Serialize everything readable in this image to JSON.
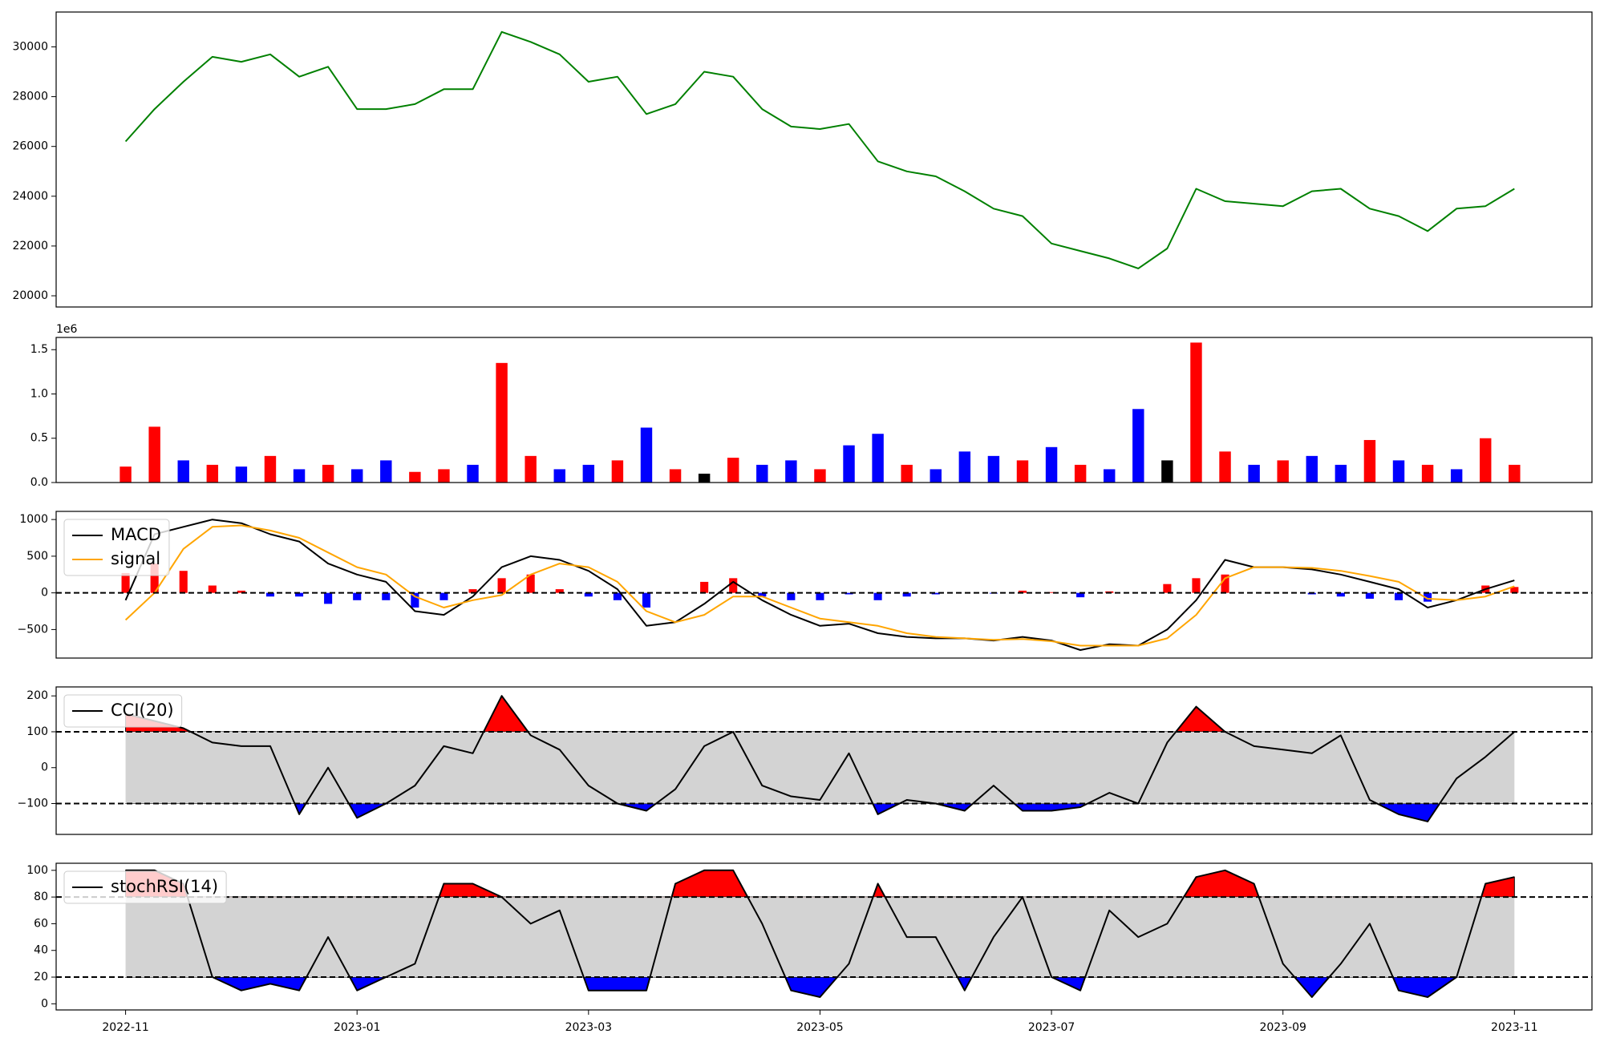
{
  "chart_data": [
    {
      "type": "line",
      "x": [
        0,
        0.25,
        0.5,
        0.75,
        1,
        1.25,
        1.5,
        1.75,
        2,
        2.25,
        2.5,
        2.75,
        3,
        3.25,
        3.5,
        3.75,
        4,
        4.25,
        4.5,
        4.75,
        5,
        5.25,
        5.5,
        5.75,
        6,
        6.25,
        6.5,
        6.75,
        7,
        7.25,
        7.5,
        7.75,
        8,
        8.25,
        8.5,
        8.75,
        9,
        9.25,
        9.5,
        9.75,
        10,
        10.25,
        10.5,
        10.75,
        11,
        11.25,
        11.5,
        11.75,
        12
      ],
      "xlim": [
        -0.6,
        12.67
      ],
      "ylim": [
        19550,
        31400
      ],
      "yticks": [
        20000,
        22000,
        24000,
        26000,
        28000,
        30000
      ],
      "series": [
        {
          "color": "green",
          "values": [
            26200,
            27500,
            28600,
            29600,
            29400,
            29700,
            28800,
            29200,
            27500,
            27500,
            27700,
            28300,
            28300,
            30600,
            30200,
            29700,
            28600,
            28800,
            27300,
            27700,
            29000,
            28800,
            27500,
            26800,
            26700,
            26900,
            25400,
            25000,
            24800,
            24200,
            23500,
            23200,
            22100,
            21800,
            21500,
            21100,
            21900,
            24300,
            23800,
            23700,
            23600,
            24200,
            24300,
            23500,
            23200,
            22600,
            23500,
            23600,
            24300
          ]
        }
      ]
    },
    {
      "type": "bar",
      "x": [
        0,
        0.25,
        0.5,
        0.75,
        1,
        1.25,
        1.5,
        1.75,
        2,
        2.25,
        2.5,
        2.75,
        3,
        3.25,
        3.5,
        3.75,
        4,
        4.25,
        4.5,
        4.75,
        5,
        5.25,
        5.5,
        5.75,
        6,
        6.25,
        6.5,
        6.75,
        7,
        7.25,
        7.5,
        7.75,
        8,
        8.25,
        8.5,
        8.75,
        9,
        9.25,
        9.5,
        9.75,
        10,
        10.25,
        10.5,
        10.75,
        11,
        11.25,
        11.5,
        11.75,
        12
      ],
      "xlim": [
        -0.6,
        12.67
      ],
      "ylim": [
        0,
        1.638
      ],
      "yticks": [
        {
          "value": 0,
          "label": "0.0"
        },
        0.5,
        {
          "value": 1,
          "label": "1.0"
        },
        1.5
      ],
      "y_offset_label": "1e6",
      "values": [
        0.18,
        0.63,
        0.25,
        0.2,
        0.18,
        0.3,
        0.15,
        0.2,
        0.15,
        0.25,
        0.12,
        0.15,
        0.2,
        1.35,
        0.3,
        0.15,
        0.2,
        0.25,
        0.62,
        0.15,
        0.1,
        0.28,
        0.2,
        0.25,
        0.15,
        0.42,
        0.55,
        0.2,
        0.15,
        0.35,
        0.3,
        0.25,
        0.4,
        0.2,
        0.15,
        0.83,
        0.25,
        1.58,
        0.35,
        0.2,
        0.25,
        0.3,
        0.2,
        0.48,
        0.25,
        0.2,
        0.15,
        0.5,
        0.2
      ],
      "colors": [
        "red",
        "red",
        "blue",
        "red",
        "blue",
        "red",
        "blue",
        "red",
        "blue",
        "blue",
        "red",
        "red",
        "blue",
        "red",
        "red",
        "blue",
        "blue",
        "red",
        "blue",
        "red",
        "black",
        "red",
        "blue",
        "blue",
        "red",
        "blue",
        "blue",
        "red",
        "blue",
        "blue",
        "blue",
        "red",
        "blue",
        "red",
        "blue",
        "blue",
        "black",
        "red",
        "red",
        "blue",
        "red",
        "blue",
        "blue",
        "red",
        "blue",
        "red",
        "blue",
        "red",
        "red"
      ]
    },
    {
      "type": "combo",
      "x": [
        0,
        0.25,
        0.5,
        0.75,
        1,
        1.25,
        1.5,
        1.75,
        2,
        2.25,
        2.5,
        2.75,
        3,
        3.25,
        3.5,
        3.75,
        4,
        4.25,
        4.5,
        4.75,
        5,
        5.25,
        5.5,
        5.75,
        6,
        6.25,
        6.5,
        6.75,
        7,
        7.25,
        7.5,
        7.75,
        8,
        8.25,
        8.5,
        8.75,
        9,
        9.25,
        9.5,
        9.75,
        10,
        10.25,
        10.5,
        10.75,
        11,
        11.25,
        11.5,
        11.75,
        12
      ],
      "xlim": [
        -0.6,
        12.67
      ],
      "ylim": [
        -889,
        1111
      ],
      "yticks": [
        {
          "value": -500,
          "label": "−500"
        },
        0,
        500,
        1000
      ],
      "hlines": [
        0
      ],
      "legend": "upper left",
      "series": [
        {
          "type": "bar",
          "pos_color": "red",
          "neg_color": "blue",
          "values": [
            270,
            400,
            300,
            100,
            30,
            -50,
            -50,
            -150,
            -100,
            -100,
            -200,
            -100,
            50,
            200,
            250,
            50,
            -50,
            -100,
            -200,
            0,
            150,
            200,
            -50,
            -100,
            -100,
            -20,
            -100,
            -50,
            -20,
            0,
            -10,
            30,
            10,
            -60,
            20,
            0,
            120,
            200,
            250,
            0,
            0,
            -20,
            -50,
            -80,
            -100,
            -120,
            0,
            100,
            80
          ]
        },
        {
          "type": "line",
          "name": "MACD",
          "color": "black",
          "values": [
            -100,
            800,
            900,
            1000,
            950,
            800,
            700,
            400,
            250,
            150,
            -250,
            -300,
            -50,
            350,
            500,
            450,
            300,
            50,
            -450,
            -400,
            -150,
            150,
            -100,
            -300,
            -450,
            -420,
            -550,
            -600,
            -620,
            -620,
            -650,
            -600,
            -650,
            -780,
            -700,
            -720,
            -500,
            -100,
            450,
            350,
            350,
            320,
            250,
            150,
            50,
            -200,
            -100,
            50,
            170
          ]
        },
        {
          "type": "line",
          "name": "signal",
          "color": "orange",
          "values": [
            -370,
            0,
            600,
            900,
            920,
            850,
            750,
            550,
            350,
            250,
            -50,
            -200,
            -100,
            -30,
            250,
            400,
            350,
            150,
            -250,
            -400,
            -300,
            -50,
            -50,
            -200,
            -350,
            -400,
            -450,
            -550,
            -600,
            -620,
            -640,
            -630,
            -660,
            -720,
            -720,
            -720,
            -620,
            -300,
            200,
            350,
            350,
            340,
            300,
            230,
            150,
            -80,
            -100,
            -50,
            90
          ]
        }
      ]
    },
    {
      "type": "line",
      "x": [
        0,
        0.25,
        0.5,
        0.75,
        1,
        1.25,
        1.5,
        1.75,
        2,
        2.25,
        2.5,
        2.75,
        3,
        3.25,
        3.5,
        3.75,
        4,
        4.25,
        4.5,
        4.75,
        5,
        5.25,
        5.5,
        5.75,
        6,
        6.25,
        6.5,
        6.75,
        7,
        7.25,
        7.5,
        7.75,
        8,
        8.25,
        8.5,
        8.75,
        9,
        9.25,
        9.5,
        9.75,
        10,
        10.25,
        10.5,
        10.75,
        11,
        11.25,
        11.5,
        11.75,
        12
      ],
      "xlim": [
        -0.6,
        12.67
      ],
      "ylim": [
        -186,
        225
      ],
      "yticks": [
        {
          "value": -100,
          "label": "−100"
        },
        0,
        100,
        200
      ],
      "hlines": [
        100,
        -100
      ],
      "band_color": "#d3d3d3",
      "above_color": "red",
      "below_color": "blue",
      "legend": "upper left",
      "series": [
        {
          "name": "CCI(20)",
          "color": "black",
          "values": [
            150,
            130,
            110,
            70,
            60,
            60,
            -130,
            0,
            -140,
            -100,
            -50,
            60,
            40,
            200,
            90,
            50,
            -50,
            -100,
            -120,
            -60,
            60,
            100,
            -50,
            -80,
            -90,
            40,
            -130,
            -90,
            -100,
            -120,
            -50,
            -120,
            -120,
            -110,
            -70,
            -100,
            70,
            170,
            100,
            60,
            50,
            40,
            90,
            -90,
            -130,
            -150,
            -30,
            30,
            100
          ]
        }
      ]
    },
    {
      "type": "line",
      "x": [
        0,
        0.25,
        0.5,
        0.75,
        1,
        1.25,
        1.5,
        1.75,
        2,
        2.25,
        2.5,
        2.75,
        3,
        3.25,
        3.5,
        3.75,
        4,
        4.25,
        4.5,
        4.75,
        5,
        5.25,
        5.5,
        5.75,
        6,
        6.25,
        6.5,
        6.75,
        7,
        7.25,
        7.5,
        7.75,
        8,
        8.25,
        8.5,
        8.75,
        9,
        9.25,
        9.5,
        9.75,
        10,
        10.25,
        10.5,
        10.75,
        11,
        11.25,
        11.5,
        11.75,
        12
      ],
      "xlim": [
        -0.6,
        12.67
      ],
      "ylim": [
        -4.6,
        105.3
      ],
      "yticks": [
        0,
        20,
        40,
        60,
        80,
        100
      ],
      "xticks": [
        {
          "value": 0,
          "label": "2022-11"
        },
        {
          "value": 2,
          "label": "2023-01"
        },
        {
          "value": 4,
          "label": "2023-03"
        },
        {
          "value": 6,
          "label": "2023-05"
        },
        {
          "value": 8,
          "label": "2023-07"
        },
        {
          "value": 10,
          "label": "2023-09"
        },
        {
          "value": 12,
          "label": "2023-11"
        }
      ],
      "hlines": [
        80,
        20
      ],
      "band_color": "#d3d3d3",
      "above_color": "red",
      "below_color": "blue",
      "legend": "upper left",
      "series": [
        {
          "name": "stochRSI(14)",
          "color": "black",
          "values": [
            100,
            100,
            90,
            20,
            10,
            15,
            10,
            50,
            10,
            20,
            30,
            90,
            90,
            80,
            60,
            70,
            10,
            10,
            10,
            90,
            100,
            100,
            60,
            10,
            5,
            30,
            90,
            50,
            50,
            10,
            50,
            80,
            20,
            10,
            70,
            50,
            60,
            95,
            100,
            90,
            30,
            5,
            30,
            60,
            10,
            5,
            20,
            90,
            95
          ]
        }
      ]
    }
  ]
}
